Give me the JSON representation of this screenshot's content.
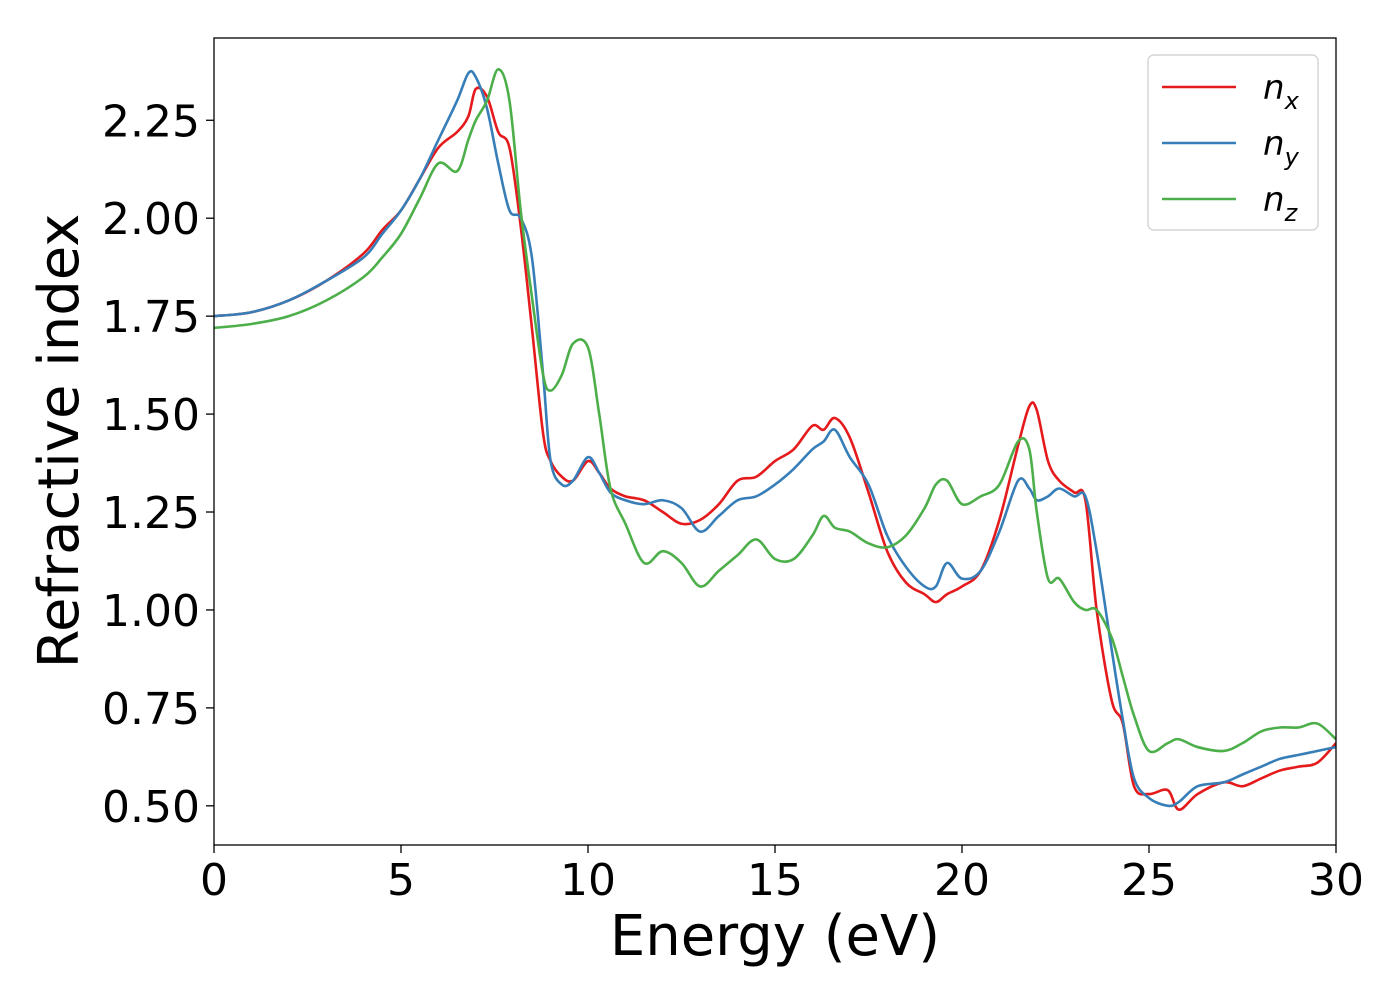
{
  "chart_data": {
    "type": "line",
    "title": "",
    "xlabel": "Energy (eV)",
    "ylabel": "Refractive index",
    "xlim": [
      0,
      30
    ],
    "ylim": [
      0.4,
      2.46
    ],
    "xticks": [
      0,
      5,
      10,
      15,
      20,
      25,
      30
    ],
    "xtick_labels": [
      "0",
      "5",
      "10",
      "15",
      "20",
      "25",
      "30"
    ],
    "yticks": [
      0.5,
      0.75,
      1.0,
      1.25,
      1.5,
      1.75,
      2.0,
      2.25
    ],
    "ytick_labels": [
      "0.50",
      "0.75",
      "1.00",
      "1.25",
      "1.50",
      "1.75",
      "2.00",
      "2.25"
    ],
    "grid": false,
    "legend_position": "top-right",
    "colors": {
      "n_x": "#e41a1c",
      "n_y": "#377eb8",
      "n_z": "#4daf4a"
    },
    "series": [
      {
        "name": "n_x",
        "legend_base": "n",
        "legend_sub": "x",
        "color": "#e41a1c",
        "x": [
          0,
          1,
          2,
          3,
          4,
          4.5,
          5,
          5.5,
          6,
          6.5,
          6.8,
          7.0,
          7.3,
          7.6,
          7.9,
          8.2,
          8.5,
          8.8,
          9.0,
          9.3,
          9.6,
          10.0,
          10.3,
          10.6,
          11.0,
          11.5,
          12.0,
          12.5,
          13.0,
          13.5,
          14.0,
          14.5,
          15.0,
          15.5,
          16.0,
          16.3,
          16.6,
          17.0,
          17.5,
          18.0,
          18.5,
          19.0,
          19.3,
          19.6,
          20.0,
          20.5,
          21.0,
          21.5,
          21.8,
          22.0,
          22.3,
          22.6,
          23.0,
          23.3,
          23.6,
          24.0,
          24.3,
          24.6,
          25.0,
          25.5,
          25.8,
          26.3,
          27.0,
          27.5,
          28.0,
          28.5,
          29.0,
          29.5,
          30.0
        ],
        "y": [
          1.75,
          1.76,
          1.79,
          1.84,
          1.91,
          1.97,
          2.02,
          2.1,
          2.18,
          2.22,
          2.26,
          2.33,
          2.31,
          2.22,
          2.18,
          1.98,
          1.72,
          1.45,
          1.38,
          1.34,
          1.33,
          1.38,
          1.35,
          1.31,
          1.29,
          1.28,
          1.25,
          1.22,
          1.23,
          1.27,
          1.33,
          1.34,
          1.38,
          1.41,
          1.47,
          1.46,
          1.49,
          1.44,
          1.3,
          1.15,
          1.07,
          1.04,
          1.02,
          1.04,
          1.06,
          1.1,
          1.23,
          1.42,
          1.52,
          1.51,
          1.38,
          1.33,
          1.3,
          1.28,
          1.0,
          0.77,
          0.71,
          0.55,
          0.53,
          0.54,
          0.49,
          0.53,
          0.56,
          0.55,
          0.57,
          0.59,
          0.6,
          0.61,
          0.66
        ]
      },
      {
        "name": "n_y",
        "legend_base": "n",
        "legend_sub": "y",
        "color": "#377eb8",
        "x": [
          0,
          1,
          2,
          3,
          4,
          4.5,
          5,
          5.5,
          6,
          6.5,
          6.8,
          7.0,
          7.3,
          7.6,
          7.9,
          8.2,
          8.5,
          8.8,
          9.0,
          9.3,
          9.6,
          10.0,
          10.3,
          10.6,
          11.0,
          11.5,
          12.0,
          12.5,
          13.0,
          13.5,
          14.0,
          14.5,
          15.0,
          15.5,
          16.0,
          16.3,
          16.6,
          17.0,
          17.5,
          18.0,
          18.5,
          19.0,
          19.3,
          19.6,
          20.0,
          20.5,
          21.0,
          21.5,
          21.8,
          22.0,
          22.3,
          22.6,
          23.0,
          23.3,
          23.6,
          24.0,
          24.3,
          24.6,
          25.0,
          25.5,
          25.8,
          26.3,
          27.0,
          27.5,
          28.0,
          28.5,
          29.0,
          29.5,
          30.0
        ],
        "y": [
          1.75,
          1.76,
          1.79,
          1.84,
          1.9,
          1.96,
          2.02,
          2.1,
          2.2,
          2.3,
          2.37,
          2.36,
          2.28,
          2.14,
          2.02,
          2.0,
          1.9,
          1.6,
          1.38,
          1.32,
          1.33,
          1.39,
          1.35,
          1.3,
          1.28,
          1.27,
          1.28,
          1.26,
          1.2,
          1.24,
          1.28,
          1.29,
          1.32,
          1.36,
          1.41,
          1.43,
          1.46,
          1.39,
          1.32,
          1.19,
          1.11,
          1.06,
          1.06,
          1.12,
          1.08,
          1.1,
          1.2,
          1.33,
          1.31,
          1.28,
          1.29,
          1.31,
          1.29,
          1.29,
          1.15,
          0.9,
          0.72,
          0.57,
          0.52,
          0.5,
          0.51,
          0.55,
          0.56,
          0.58,
          0.6,
          0.62,
          0.63,
          0.64,
          0.65
        ]
      },
      {
        "name": "n_z",
        "legend_base": "n",
        "legend_sub": "z",
        "color": "#4daf4a",
        "x": [
          0,
          1,
          2,
          3,
          4,
          4.5,
          5,
          5.5,
          6,
          6.5,
          6.8,
          7.0,
          7.3,
          7.6,
          7.9,
          8.2,
          8.5,
          8.8,
          9.0,
          9.3,
          9.6,
          10.0,
          10.3,
          10.6,
          11.0,
          11.5,
          12.0,
          12.5,
          13.0,
          13.5,
          14.0,
          14.5,
          15.0,
          15.5,
          16.0,
          16.3,
          16.6,
          17.0,
          17.5,
          18.0,
          18.5,
          19.0,
          19.3,
          19.6,
          20.0,
          20.5,
          21.0,
          21.5,
          21.8,
          22.0,
          22.3,
          22.6,
          23.0,
          23.3,
          23.6,
          24.0,
          24.3,
          24.6,
          25.0,
          25.5,
          25.8,
          26.3,
          27.0,
          27.5,
          28.0,
          28.5,
          29.0,
          29.5,
          30.0
        ],
        "y": [
          1.72,
          1.73,
          1.75,
          1.79,
          1.85,
          1.9,
          1.96,
          2.05,
          2.14,
          2.12,
          2.2,
          2.25,
          2.3,
          2.38,
          2.3,
          2.02,
          1.8,
          1.6,
          1.56,
          1.6,
          1.68,
          1.67,
          1.5,
          1.31,
          1.22,
          1.12,
          1.15,
          1.12,
          1.06,
          1.1,
          1.14,
          1.18,
          1.13,
          1.13,
          1.19,
          1.24,
          1.21,
          1.2,
          1.17,
          1.16,
          1.19,
          1.26,
          1.32,
          1.33,
          1.27,
          1.29,
          1.32,
          1.43,
          1.41,
          1.25,
          1.08,
          1.08,
          1.02,
          1.0,
          1.0,
          0.93,
          0.83,
          0.73,
          0.64,
          0.66,
          0.67,
          0.65,
          0.64,
          0.66,
          0.69,
          0.7,
          0.7,
          0.71,
          0.67
        ]
      }
    ]
  }
}
